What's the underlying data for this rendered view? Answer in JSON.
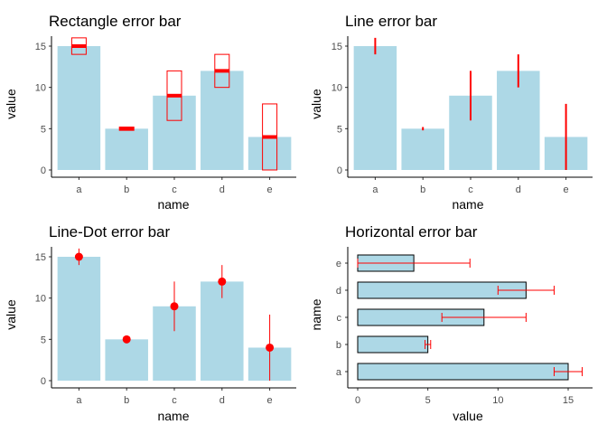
{
  "colors": {
    "bar_fill": "#add8e6",
    "error_color": "#ff0000",
    "axis_color": "#000000",
    "tick_label_color": "#4d4d4d"
  },
  "chart_data": [
    {
      "type": "bar",
      "orientation": "vertical",
      "error_style": "rectangle",
      "title": "Rectangle error bar",
      "xlabel": "name",
      "ylabel": "value",
      "categories": [
        "a",
        "b",
        "c",
        "d",
        "e"
      ],
      "values": [
        15,
        5,
        9,
        12,
        4
      ],
      "error": [
        1,
        0.2,
        3,
        2,
        4
      ],
      "ylim": [
        0,
        16
      ],
      "yticks": [
        "0",
        "5",
        "10",
        "15"
      ],
      "grid": false
    },
    {
      "type": "bar",
      "orientation": "vertical",
      "error_style": "line",
      "title": "Line error bar",
      "xlabel": "name",
      "ylabel": "value",
      "categories": [
        "a",
        "b",
        "c",
        "d",
        "e"
      ],
      "values": [
        15,
        5,
        9,
        12,
        4
      ],
      "error": [
        1,
        0.2,
        3,
        2,
        4
      ],
      "ylim": [
        0,
        16
      ],
      "yticks": [
        "0",
        "5",
        "10",
        "15"
      ],
      "grid": false
    },
    {
      "type": "bar",
      "orientation": "vertical",
      "error_style": "line-dot",
      "title": "Line-Dot error bar",
      "xlabel": "name",
      "ylabel": "value",
      "categories": [
        "a",
        "b",
        "c",
        "d",
        "e"
      ],
      "values": [
        15,
        5,
        9,
        12,
        4
      ],
      "error": [
        1,
        0.2,
        3,
        2,
        4
      ],
      "ylim": [
        0,
        16
      ],
      "yticks": [
        "0",
        "5",
        "10",
        "15"
      ],
      "grid": false
    },
    {
      "type": "bar",
      "orientation": "horizontal",
      "error_style": "capped",
      "title": "Horizontal error bar",
      "xlabel": "value",
      "ylabel": "name",
      "categories": [
        "a",
        "b",
        "c",
        "d",
        "e"
      ],
      "values": [
        15,
        5,
        9,
        12,
        4
      ],
      "error": [
        1,
        0.2,
        3,
        2,
        4
      ],
      "xlim": [
        0,
        16
      ],
      "xticks": [
        "0",
        "5",
        "10",
        "15"
      ],
      "grid": false
    }
  ]
}
